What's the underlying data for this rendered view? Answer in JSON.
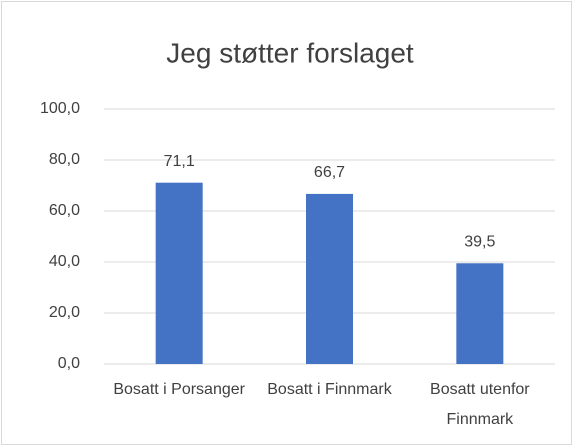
{
  "chart_data": {
    "type": "bar",
    "title": "Jeg støtter forslaget",
    "categories": [
      "Bosatt i Porsanger",
      "Bosatt i Finnmark",
      "Bosatt utenfor Finnmark"
    ],
    "values": [
      71.1,
      66.7,
      39.5
    ],
    "value_labels": [
      "71,1",
      "66,7",
      "39,5"
    ],
    "color": "#4472c4",
    "ylim": [
      0,
      100
    ],
    "yticks": [
      {
        "value": 0,
        "label": "0,0"
      },
      {
        "value": 20,
        "label": "20,0"
      },
      {
        "value": 40,
        "label": "40,0"
      },
      {
        "value": 60,
        "label": "60,0"
      },
      {
        "value": 80,
        "label": "80,0"
      },
      {
        "value": 100,
        "label": "100,0"
      }
    ],
    "grid": true
  }
}
